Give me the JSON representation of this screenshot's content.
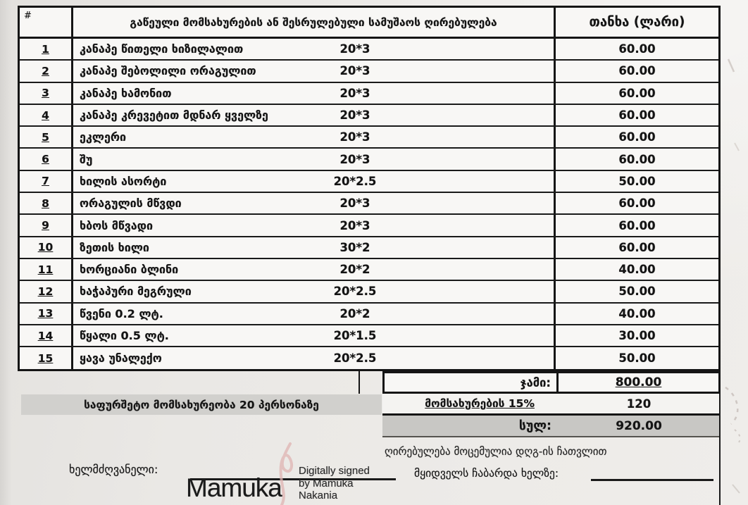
{
  "document": {
    "table": {
      "header": {
        "num": "#",
        "description": "გაწეული მომსახურების ან შესრულებული სამუშაოს ღირებულება",
        "amount": "თანხა (ლარი)"
      },
      "rows": [
        {
          "num": "1",
          "name": "კანაპე წითელი ხიზილალით",
          "qty": "20*3",
          "amount": "60.00"
        },
        {
          "num": "2",
          "name": "კანაპე შებოლილი ორაგულით",
          "qty": "20*3",
          "amount": "60.00"
        },
        {
          "num": "3",
          "name": "კანაპე ხამონით",
          "qty": "20*3",
          "amount": "60.00"
        },
        {
          "num": "4",
          "name": "კანაპე კრევეტით მდნარ ყველზე",
          "qty": "20*3",
          "amount": "60.00"
        },
        {
          "num": "5",
          "name": "ეკლერი",
          "qty": "20*3",
          "amount": "60.00"
        },
        {
          "num": "6",
          "name": "შუ",
          "qty": "20*3",
          "amount": "60.00"
        },
        {
          "num": "7",
          "name": "ხილის ასორტი",
          "qty": "20*2.5",
          "amount": "50.00"
        },
        {
          "num": "8",
          "name": "ორაგულის მწვდი",
          "qty": "20*3",
          "amount": "60.00"
        },
        {
          "num": "9",
          "name": "ხბოს მწვადი",
          "qty": "20*3",
          "amount": "60.00"
        },
        {
          "num": "10",
          "name": "ზეთის ხილი",
          "qty": "30*2",
          "amount": "60.00"
        },
        {
          "num": "11",
          "name": "ხორციანი ბლინი",
          "qty": "20*2",
          "amount": "40.00"
        },
        {
          "num": "12",
          "name": "ხაჭაპური მეგრული",
          "qty": "20*2.5",
          "amount": "50.00"
        },
        {
          "num": "13",
          "name": "წვენი 0.2 ლტ.",
          "qty": "20*2",
          "amount": "40.00"
        },
        {
          "num": "14",
          "name": "წყალი 0.5 ლტ.",
          "qty": "20*1.5",
          "amount": "30.00"
        },
        {
          "num": "15",
          "name": "ყავა უნალექო",
          "qty": "20*2.5",
          "amount": "50.00"
        }
      ],
      "sum_label": "ჯამი:",
      "sum_value": "800.00",
      "banquet_note": "საფურშეტო მომსახურეობა 20 პერსონაზე",
      "service_label": "მომსახურების 15%",
      "service_value": "120",
      "total_label": "სულ:",
      "total_value": "920.00"
    },
    "footer": {
      "vat_note": "ღირებულება მოცემულია დღგ-ის ჩათვლით",
      "signer_label": "ხელმძღვანელი:",
      "signature_name": "Mamuka",
      "digital_signature_lines": [
        "Digitally signed",
        "by Mamuka",
        "Nakania"
      ],
      "buyer_label": "მყიდველს ჩაბარდა ხელზე:"
    },
    "colors": {
      "page_background": "#eae8e5",
      "table_background": "#f8f7f5",
      "highlight_gray": "#d1d0cd",
      "total_row_gray": "#c8c7c4",
      "line_black": "#151515",
      "signature_pink": "#dfb3b1"
    }
  }
}
